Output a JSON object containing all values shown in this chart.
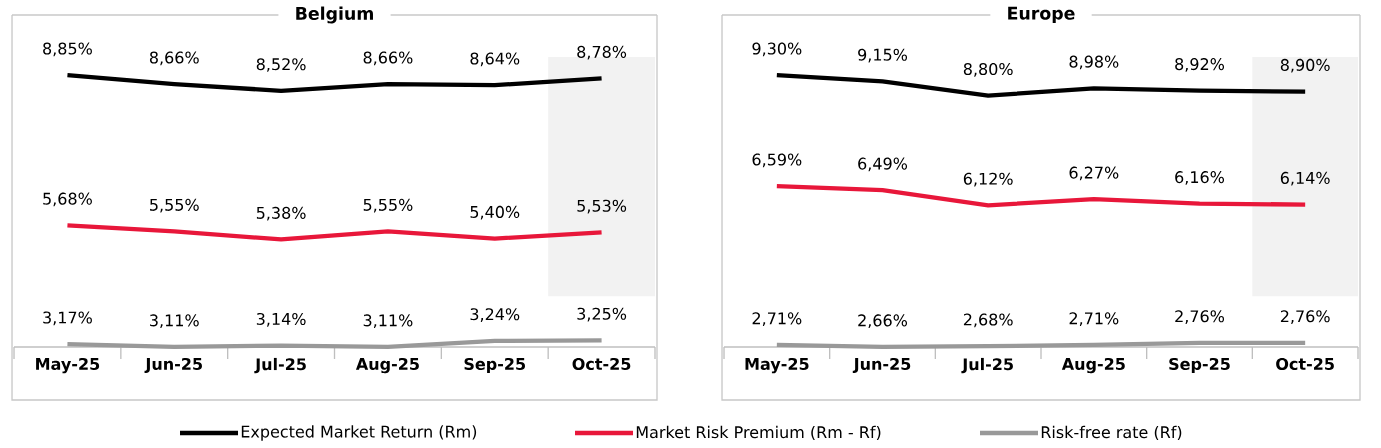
{
  "chart_data": [
    {
      "type": "line",
      "title": "Belgium",
      "categories": [
        "May-25",
        "Jun-25",
        "Jul-25",
        "Aug-25",
        "Sep-25",
        "Oct-25"
      ],
      "legend": "bottom",
      "bands": [
        {
          "axis": "x",
          "from": "Oct-25",
          "to": "Oct-25",
          "color": "#f2f2f2"
        }
      ],
      "series": [
        {
          "name": "Expected Market Return (Rm)",
          "color": "#000000",
          "values": [
            8.85,
            8.66,
            8.52,
            8.66,
            8.64,
            8.78
          ],
          "value_labels": [
            "8,85%",
            "8,66%",
            "8,52%",
            "8,66%",
            "8,64%",
            "8,78%"
          ]
        },
        {
          "name": "Market Risk Premium (Rm - Rf)",
          "color": "#e8173a",
          "values": [
            5.68,
            5.55,
            5.38,
            5.55,
            5.4,
            5.53
          ],
          "value_labels": [
            "5,68%",
            "5,55%",
            "5,38%",
            "5,55%",
            "5,40%",
            "5,53%"
          ]
        },
        {
          "name": "Risk-free rate (Rf)",
          "color": "#999999",
          "values": [
            3.17,
            3.11,
            3.14,
            3.11,
            3.24,
            3.25
          ],
          "value_labels": [
            "3,17%",
            "3,11%",
            "3,14%",
            "3,11%",
            "3,24%",
            "3,25%"
          ]
        }
      ]
    },
    {
      "type": "line",
      "title": "Europe",
      "categories": [
        "May-25",
        "Jun-25",
        "Jul-25",
        "Aug-25",
        "Sep-25",
        "Oct-25"
      ],
      "bands": [
        {
          "axis": "x",
          "from": "Oct-25",
          "to": "Oct-25",
          "color": "#f2f2f2"
        }
      ],
      "series": [
        {
          "color": "#000000",
          "values": [
            9.3,
            9.15,
            8.8,
            8.98,
            8.92,
            8.9
          ],
          "value_labels": [
            "9,30%",
            "9,15%",
            "8,80%",
            "8,98%",
            "8,92%",
            "8,90%"
          ]
        },
        {
          "color": "#e8173a",
          "values": [
            6.59,
            6.49,
            6.12,
            6.27,
            6.16,
            6.14
          ],
          "value_labels": [
            "6,59%",
            "6,49%",
            "6,12%",
            "6,27%",
            "6,16%",
            "6,14%"
          ]
        },
        {
          "color": "#999999",
          "values": [
            2.71,
            2.66,
            2.68,
            2.71,
            2.76,
            2.76
          ],
          "value_labels": [
            "2,71%",
            "2,66%",
            "2,68%",
            "2,71%",
            "2,76%",
            "2,76%"
          ]
        }
      ]
    }
  ]
}
